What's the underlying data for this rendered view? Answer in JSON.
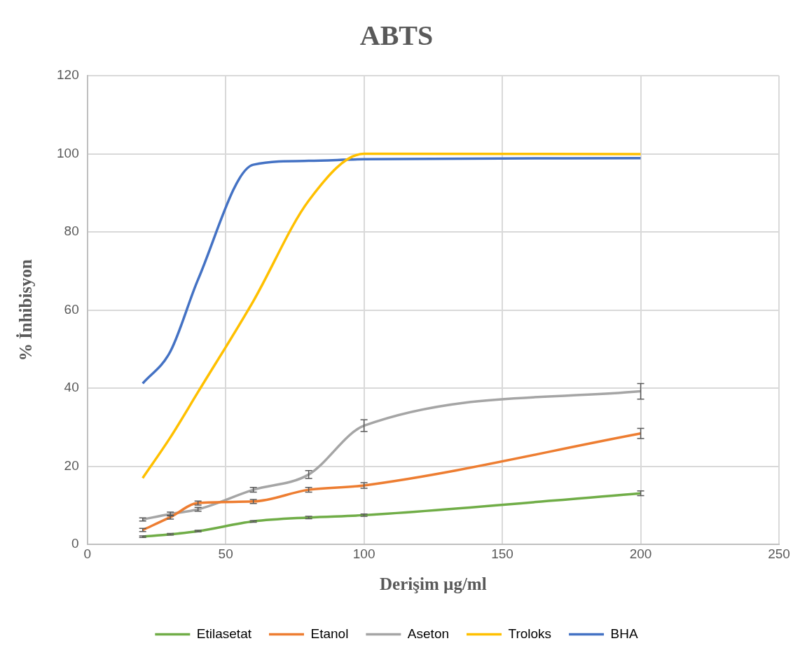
{
  "chart_data": {
    "type": "line",
    "title": "ABTS",
    "xlabel": "Derişim µg/ml",
    "ylabel": "% İnhibisyon",
    "x": [
      20,
      30,
      40,
      60,
      80,
      100,
      200
    ],
    "series": [
      {
        "name": "Etilasetat",
        "color": "#70ad47",
        "values": [
          2,
          2.6,
          3.4,
          5.9,
          6.9,
          7.5,
          13.1
        ],
        "errors": [
          0.2,
          0.2,
          0.2,
          0.2,
          0.3,
          0.3,
          0.6
        ]
      },
      {
        "name": "Etanol",
        "color": "#ed7d31",
        "values": [
          3.7,
          7,
          10.6,
          11,
          14,
          15.1,
          28.4
        ],
        "errors": [
          0.4,
          0.5,
          0.5,
          0.5,
          0.6,
          0.7,
          1.3
        ]
      },
      {
        "name": "Aseton",
        "color": "#a5a5a5",
        "values": [
          6.4,
          7.8,
          9,
          14,
          17.9,
          30.4,
          39.2
        ],
        "errors": [
          0.4,
          0.5,
          0.5,
          0.6,
          1,
          1.5,
          2
        ]
      },
      {
        "name": "Troloks",
        "color": "#ffc000",
        "values": [
          17,
          27.4,
          39,
          62.3,
          88,
          100,
          99.9
        ]
      },
      {
        "name": "BHA",
        "color": "#4472c4",
        "values": [
          41.2,
          49.4,
          67.8,
          97.2,
          98.2,
          98.6,
          98.9
        ]
      }
    ],
    "xlim": [
      0,
      250
    ],
    "xticks": [
      0,
      50,
      100,
      150,
      200,
      250
    ],
    "ylim": [
      0,
      120
    ],
    "yticks": [
      0,
      20,
      40,
      60,
      80,
      100,
      120
    ],
    "grid": true,
    "legend": "bottom",
    "marker": "none",
    "line_style": "solid"
  }
}
